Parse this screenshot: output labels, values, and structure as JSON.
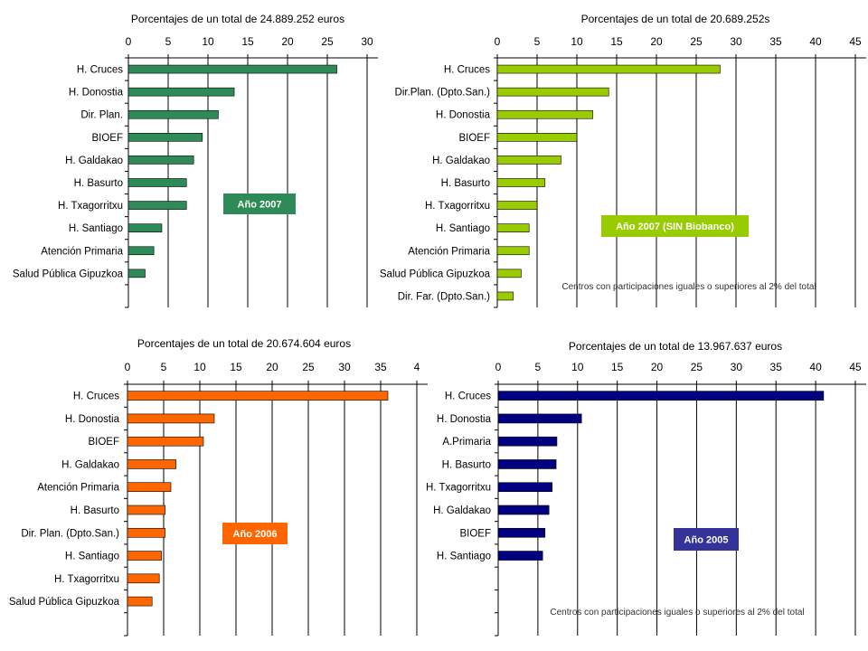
{
  "chart_data": [
    {
      "type": "bar",
      "orientation": "horizontal",
      "title": "Porcentajes de un total de 24.889.252 euros",
      "categories": [
        "H. Cruces",
        "H. Donostia",
        "Dir. Plan.",
        "BIOEF",
        "H. Galdakao",
        "H. Basurto",
        "H. Txagorritxu",
        "H. Santiago",
        "Atención Primaria",
        "Salud Pública Gipuzkoa"
      ],
      "values": [
        26.2,
        13.3,
        11.3,
        9.3,
        8.2,
        7.3,
        7.3,
        4.2,
        3.2,
        2.1
      ],
      "xlim": [
        0,
        30
      ],
      "ticks": [
        "0",
        "5",
        "10",
        "15",
        "20",
        "25",
        "30"
      ],
      "color": "#2e8b57",
      "badge": {
        "text": "Año 2007",
        "color": "#2e8b57"
      },
      "note": ""
    },
    {
      "type": "bar",
      "orientation": "horizontal",
      "title": "Porcentajes de un total de 20.689.252s",
      "categories": [
        "H. Cruces",
        "Dir.Plan. (Dpto.San.)",
        "H. Donostia",
        "BIOEF",
        "H. Galdakao",
        "H. Basurto",
        "H. Txagorritxu",
        "H. Santiago",
        "Atención Primaria",
        "Salud Pública Gipuzkoa",
        "Dir. Far. (Dpto.San.)"
      ],
      "values": [
        28.0,
        14.0,
        12.0,
        10.0,
        8.0,
        6.0,
        5.0,
        4.0,
        4.0,
        3.0,
        2.0
      ],
      "xlim": [
        0,
        45
      ],
      "ticks": [
        "0",
        "5",
        "10",
        "15",
        "20",
        "25",
        "30",
        "35",
        "40",
        "45"
      ],
      "color": "#99cc00",
      "badge": {
        "text": "Año 2007 (SIN Biobanco)",
        "color": "#99cc00"
      },
      "note": "Centros con participaciones iguales o superiores al 2% del total"
    },
    {
      "type": "bar",
      "orientation": "horizontal",
      "title": "Porcentajes de un total de 20.674.604 euros",
      "categories": [
        "H. Cruces",
        "H. Donostia",
        "BIOEF",
        "H. Galdakao",
        "Atención Primaria",
        "H. Basurto",
        "Dir. Plan. (Dpto.San.)",
        "H. Santiago",
        "H. Txagorritxu",
        "Salud Pública Gipuzkoa"
      ],
      "values": [
        36.0,
        12.0,
        10.5,
        6.7,
        6.0,
        5.2,
        5.2,
        4.7,
        4.4,
        3.4
      ],
      "xlim": [
        0,
        40
      ],
      "ticks": [
        "0",
        "5",
        "10",
        "15",
        "20",
        "25",
        "30",
        "35",
        "4"
      ],
      "color": "#ff6600",
      "badge": {
        "text": "Año 2006",
        "color": "#ff6600"
      },
      "note": ""
    },
    {
      "type": "bar",
      "orientation": "horizontal",
      "title": "Porcentajes de un total de 13.967.637 euros",
      "categories": [
        "H. Cruces",
        "H. Donostia",
        "A.Primaria",
        "H. Basurto",
        "H. Txagorritxu",
        "H. Galdakao",
        "BIOEF",
        "H. Santiago"
      ],
      "values": [
        41.0,
        10.5,
        7.4,
        7.3,
        6.8,
        6.4,
        5.9,
        5.6
      ],
      "xlim": [
        0,
        45
      ],
      "ticks": [
        "0",
        "5",
        "10",
        "15",
        "20",
        "25",
        "30",
        "35",
        "40",
        "45"
      ],
      "color": "#000080",
      "badge": {
        "text": "Año 2005",
        "color": "#333399"
      },
      "note": "Centros con participaciones iguales o superiores al 2% del total"
    }
  ]
}
